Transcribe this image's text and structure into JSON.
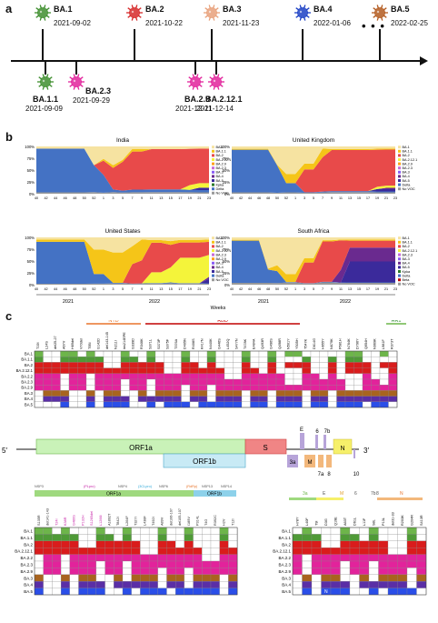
{
  "panels": [
    "a",
    "b",
    "c"
  ],
  "timeline": {
    "top": [
      {
        "name": "BA.1",
        "date": "2021-09-02",
        "color": "#3e8e2e"
      },
      {
        "name": "BA.2",
        "date": "2021-10-22",
        "color": "#d62828"
      },
      {
        "name": "BA.3",
        "date": "2021-11-23",
        "color": "#e8a07a"
      },
      {
        "name": "BA.4",
        "date": "2022-01-06",
        "color": "#1b3fc4"
      },
      {
        "name": "BA.5",
        "date": "2022-02-25",
        "color": "#b35a1f"
      }
    ],
    "bottom": [
      {
        "name": "BA.1.1",
        "date": "2021-09-09",
        "color": "#3e8e2e"
      },
      {
        "name": "BA.2.3",
        "date": "2021-09-29",
        "color": "#e2239b"
      },
      {
        "name": "BA.2.9",
        "date": "2021-12-11",
        "color": "#e2239b"
      },
      {
        "name": "BA.2.12.1",
        "date": "2021-12-14",
        "color": "#e2239b"
      }
    ],
    "ellipsis": "• • •"
  },
  "areas": [
    {
      "title": "India",
      "legend": [
        "BA.1",
        "BA.1.1",
        "BA.2",
        "BA.2.12.1",
        "BA.2.9",
        "BA.2.3",
        "BA.3",
        "BA.4",
        "BA.5",
        "Kpka",
        "Delta",
        "No VOC"
      ]
    },
    {
      "title": "United Kingdom",
      "legend": [
        "BA.1",
        "BA.1.1",
        "BA.2",
        "BA.2.12.1",
        "BA.2.9",
        "BA.2.3",
        "BA.3",
        "BA.4",
        "BA.5",
        "Delta",
        "No VOC"
      ]
    },
    {
      "title": "United States",
      "legend": [
        "BA.1",
        "BA.1.1",
        "BA.2",
        "BA.2.12.1",
        "BA.2.3",
        "BA.2.9",
        "BA.3",
        "BA.4",
        "BA.5",
        "Delta",
        "No VOC"
      ]
    },
    {
      "title": "South Africa",
      "legend": [
        "BA.1",
        "BA.1.1",
        "BA.2",
        "BA.2.12.1",
        "BA.2.3",
        "BA.3",
        "BA.4",
        "BA.5",
        "Kpka",
        "Delta",
        "Beta",
        "No VOC"
      ]
    }
  ],
  "legend_colors": {
    "BA.1": "#f6e3a1",
    "BA.1.1": "#f5c518",
    "BA.2": "#e84a4a",
    "BA.2.12.1": "#f4f43a",
    "BA.2.9": "#ff9f1c",
    "BA.2.3": "#c86ad8",
    "BA.3": "#8b5cf6",
    "BA.4": "#6a2a8f",
    "BA.5": "#3b2a9b",
    "Kpka": "#2a7a2a",
    "Delta": "#4472c4",
    "Beta": "#c00000",
    "No VOC": "#999999"
  },
  "y_ticks": [
    "100%",
    "75%",
    "50%",
    "25%",
    "0%"
  ],
  "week_ticks": [
    "40",
    "42",
    "44",
    "46",
    "48",
    "50",
    "52",
    "1",
    "3",
    "5",
    "7",
    "9",
    "11",
    "13",
    "15",
    "17",
    "19",
    "21",
    "23"
  ],
  "week_ticks_us": [
    "40",
    "42",
    "44",
    "46",
    "48",
    "50",
    "52",
    "1",
    "3",
    "5",
    "7",
    "9",
    "11",
    "13",
    "15",
    "17",
    "19",
    "21",
    "23"
  ],
  "years": [
    "2021",
    "2022"
  ],
  "weeks_label": "Weeks",
  "spike": {
    "ntd": "NTD",
    "rbd": "RBD",
    "hr1": "HR1",
    "rows": [
      "BA.1",
      "BA.1.1",
      "BA.2",
      "BA.2.12.1",
      "BA.2.2",
      "BA.2.3",
      "BA.2.9",
      "BA.3",
      "BA.4",
      "BA.5"
    ],
    "mutations": [
      "T19I",
      "L24S",
      "del25-27",
      "A67V",
      "H69del",
      "V70del",
      "T95I",
      "G142D",
      "del143-145",
      "N211I",
      "ins214EPE",
      "G339D",
      "R346K",
      "S371L",
      "S373P",
      "S375F",
      "T376A",
      "D405N",
      "R408S",
      "K417N",
      "N440K",
      "G446S",
      "L452Q",
      "S477N",
      "T478K",
      "E484A",
      "Q493R",
      "G496S",
      "Q498R",
      "N501Y",
      "Y505H",
      "T547K",
      "D614G",
      "H655Y",
      "N679K",
      "P681H",
      "N764K",
      "D796Y",
      "Q954H",
      "N969K",
      "L981F",
      "R373T"
    ]
  },
  "genome": {
    "five": "5′",
    "three": "3′",
    "orf1a": "ORF1a",
    "orf1b": "ORF1b",
    "s": "S",
    "e": "E",
    "six": "6",
    "sevenb": "7b",
    "threea": "3a",
    "m": "M",
    "sevena": "7a",
    "eight": "8",
    "n": "N",
    "ten": "10"
  },
  "orf1ab": {
    "nsp_labels": [
      "NSP3",
      "(PLpro)",
      "NSP4",
      "(3CLpro)",
      "NSP6",
      "(RdRp)",
      "NSP13",
      "NSP14"
    ],
    "orf1a": "ORF1a",
    "orf1b": "ORF1b",
    "rows": [
      "BA.1",
      "BA.1.1",
      "BA.2",
      "BA.2.12.1",
      "BA.2.2",
      "BA.2.3",
      "BA.2.9",
      "BA.3",
      "BA.4",
      "BA.5"
    ],
    "mutations": [
      "S135R",
      "del141-143",
      "T24I",
      "K38R",
      "G489S",
      "P132H",
      "S1265del",
      "L1266I",
      "A1892T",
      "T842I",
      "L264F",
      "T327I",
      "L438F",
      "T492I",
      "A89V",
      "del106-107",
      "del105-107",
      "I189V",
      "P314L",
      "T4G",
      "R392C",
      "H2V",
      "T12I"
    ]
  },
  "structural": {
    "gene_labels": [
      "3a",
      "E",
      "M",
      "6",
      "7b",
      "8",
      "N"
    ],
    "rows": [
      "BA.1",
      "BA.1.1",
      "BA.2",
      "BA.2.12.1",
      "BA.2.2",
      "BA.2.3",
      "BA.2.9",
      "BA.3",
      "BA.4",
      "BA.5"
    ],
    "mutations": [
      "H78Y",
      "L40F",
      "T9I",
      "D3G",
      "Q19E",
      "A63T",
      "D61L",
      "L11F",
      "S8L",
      "P13L",
      "del31-33",
      "R203K",
      "G204R",
      "S413R"
    ],
    "g_mark": "G",
    "n_mark": "N"
  }
}
